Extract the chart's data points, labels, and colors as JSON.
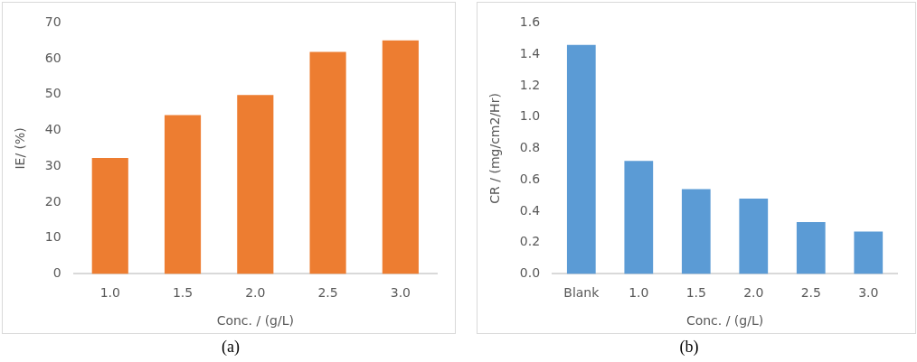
{
  "chart_data": [
    {
      "type": "bar",
      "xlabel": "Conc. / (g/L)",
      "ylabel": "IE/ (%)",
      "categories": [
        "1.0",
        "1.5",
        "2.0",
        "2.5",
        "3.0"
      ],
      "values": [
        32.3,
        44.3,
        49.9,
        61.9,
        65.1
      ],
      "color": "#ed7d31",
      "ylim": [
        0,
        70
      ],
      "yticks": [
        0,
        10,
        20,
        30,
        40,
        50,
        60,
        70
      ],
      "grid": false,
      "annotations": [
        "(a)"
      ]
    },
    {
      "type": "bar",
      "xlabel": "Conc. / (g/L)",
      "ylabel": "CR / (mg/cm2/Hr)",
      "categories": [
        "Blank",
        "1.0",
        "1.5",
        "2.0",
        "2.5",
        "3.0"
      ],
      "values": [
        1.46,
        0.72,
        0.54,
        0.48,
        0.33,
        0.27
      ],
      "color": "#5b9bd5",
      "ylim": [
        0,
        1.6
      ],
      "yticks": [
        {
          "value": 0,
          "label": "0.0"
        },
        {
          "value": 0.2,
          "label": "0.2"
        },
        {
          "value": 0.4,
          "label": "0.4"
        },
        {
          "value": 0.6,
          "label": "0.6"
        },
        {
          "value": 0.8,
          "label": "0.8"
        },
        {
          "value": 1,
          "label": "1.0"
        },
        {
          "value": 1.2,
          "label": "1.2"
        },
        {
          "value": 1.4,
          "label": "1.4"
        },
        {
          "value": 1.6,
          "label": "1.6"
        }
      ],
      "grid": false,
      "annotations": [
        "(b)"
      ]
    }
  ]
}
